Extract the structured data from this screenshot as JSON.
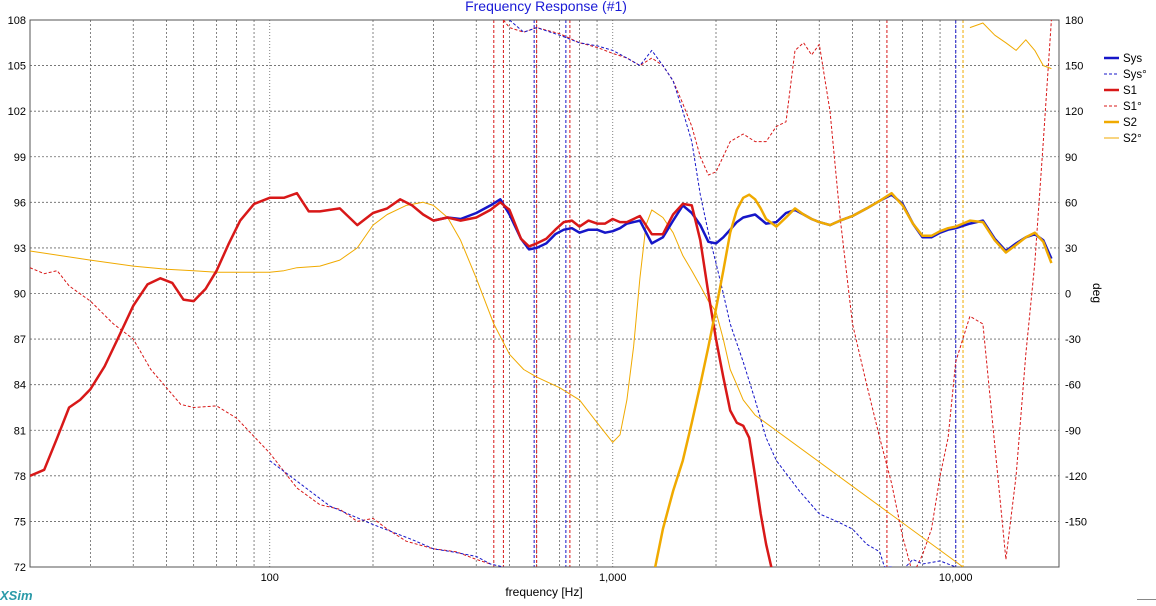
{
  "window": {
    "brand": "XSim"
  },
  "chart_data": {
    "type": "line",
    "title": "Frequency Response (#1)",
    "xlabel": "frequency [Hz]",
    "ylabel_right": "deg",
    "x_scale": "log",
    "xlim": [
      20,
      20000
    ],
    "ylim": [
      72,
      108
    ],
    "ylim_right": [
      -180,
      180
    ],
    "grid": true,
    "legend_position": "right",
    "y_ticks": [
      72,
      75,
      78,
      81,
      84,
      87,
      90,
      93,
      96,
      99,
      102,
      105,
      108
    ],
    "y_right_ticks": [
      -150,
      -120,
      -90,
      -60,
      -30,
      0,
      30,
      60,
      90,
      120,
      150,
      180
    ],
    "x_ticks": [
      {
        "value": 100,
        "label": "100"
      },
      {
        "value": 1000,
        "label": "1,000"
      },
      {
        "value": 10000,
        "label": "10,000"
      }
    ],
    "colors": {
      "sys": "#1616c8",
      "s1": "#d81818",
      "s2": "#f0aa00"
    },
    "series": [
      {
        "name": "Sys",
        "key": "sys",
        "style": "solid",
        "axis": "left",
        "width": 2.5,
        "x": [
          300,
          330,
          360,
          400,
          440,
          470,
          500,
          540,
          570,
          600,
          640,
          680,
          720,
          760,
          800,
          850,
          900,
          950,
          1000,
          1050,
          1100,
          1200,
          1300,
          1400,
          1500,
          1600,
          1700,
          1800,
          1900,
          2000,
          2100,
          2200,
          2300,
          2400,
          2600,
          2800,
          3000,
          3200,
          3400,
          3600,
          3800,
          4000,
          4300,
          4600,
          5000,
          5500,
          6000,
          6500,
          7000,
          7500,
          8000,
          8500,
          9000,
          9500,
          10000,
          11000,
          12000,
          13000,
          14000,
          15000,
          16000,
          17000,
          18000,
          19000
        ],
        "y": [
          94.8,
          95,
          94.9,
          95.3,
          95.8,
          96.2,
          95.2,
          93.6,
          92.9,
          93,
          93.3,
          93.9,
          94.2,
          94.3,
          94,
          94.2,
          94.2,
          94,
          94.1,
          94.3,
          94.6,
          94.8,
          93.3,
          93.7,
          94.8,
          95.8,
          95.3,
          94.5,
          93.4,
          93.3,
          93.7,
          94.2,
          94.7,
          95,
          95.2,
          94.6,
          94.7,
          95.3,
          95.5,
          95.2,
          94.9,
          94.7,
          94.5,
          94.8,
          95.1,
          95.6,
          96.1,
          96.5,
          95.9,
          94.6,
          93.7,
          93.7,
          94,
          94.2,
          94.3,
          94.6,
          94.8,
          93.6,
          92.8,
          93.3,
          93.7,
          93.9,
          93.5,
          92.3
        ]
      },
      {
        "name": "Sys°",
        "key": "sys",
        "style": "dash",
        "axis": "right",
        "width": 1,
        "x": [
          100,
          150,
          200,
          260,
          300,
          340,
          400,
          440,
          480,
          500,
          550,
          600,
          700,
          800,
          900,
          1000,
          1100,
          1200,
          1300,
          1400,
          1500,
          1600,
          1700,
          1800,
          1900,
          2000,
          2100,
          2200,
          2400,
          2600,
          2800,
          3000,
          3500,
          4000,
          4500,
          5000,
          5500,
          6000,
          6200,
          6500,
          7000,
          7500,
          8000,
          9000,
          10000,
          10200
        ],
        "y": [
          -110,
          -140,
          -152,
          -162,
          -168,
          -170,
          -173,
          -178,
          -180,
          180,
          172,
          175,
          170,
          165,
          163,
          160,
          155,
          150,
          160,
          150,
          140,
          120,
          100,
          65,
          40,
          20,
          0,
          -20,
          -45,
          -70,
          -95,
          -110,
          -130,
          -145,
          -150,
          -155,
          -165,
          -170,
          -180,
          -180,
          -182,
          -175,
          -178,
          -176,
          -180,
          180
        ]
      },
      {
        "name": "S1",
        "key": "s1",
        "style": "solid",
        "axis": "left",
        "width": 2.5,
        "x": [
          20,
          22,
          24,
          26,
          28,
          30,
          33,
          36,
          40,
          44,
          48,
          52,
          56,
          60,
          65,
          70,
          76,
          82,
          90,
          100,
          110,
          120,
          130,
          140,
          160,
          180,
          200,
          220,
          240,
          260,
          280,
          300,
          330,
          360,
          400,
          440,
          470,
          500,
          540,
          570,
          600,
          640,
          680,
          720,
          760,
          800,
          850,
          900,
          950,
          1000,
          1050,
          1100,
          1200,
          1300,
          1400,
          1500,
          1600,
          1700,
          1800,
          1900,
          2000,
          2100,
          2200,
          2300,
          2400,
          2500,
          2600,
          2700,
          2800,
          2900,
          3000
        ],
        "y": [
          78,
          78.4,
          80.5,
          82.5,
          83,
          83.7,
          85.2,
          87,
          89.2,
          90.6,
          91,
          90.7,
          89.6,
          89.5,
          90.3,
          91.5,
          93.3,
          94.8,
          95.9,
          96.3,
          96.3,
          96.6,
          95.4,
          95.4,
          95.6,
          94.5,
          95.3,
          95.6,
          96.2,
          95.8,
          95.2,
          94.8,
          95,
          94.8,
          95,
          95.5,
          96,
          95.5,
          93.6,
          93.1,
          93.3,
          93.6,
          94.2,
          94.7,
          94.8,
          94.4,
          94.8,
          94.6,
          94.6,
          94.9,
          94.7,
          94.7,
          95.1,
          93.9,
          93.9,
          95.2,
          95.9,
          95.8,
          93.5,
          90,
          87,
          84.5,
          82.3,
          81.5,
          81.3,
          80.5,
          78,
          75.5,
          73.5,
          72,
          71
        ]
      },
      {
        "name": "S1°",
        "key": "s1",
        "style": "dash",
        "axis": "right",
        "width": 1,
        "x": [
          20,
          22,
          24,
          26,
          30,
          35,
          40,
          45,
          50,
          55,
          60,
          70,
          80,
          100,
          120,
          140,
          160,
          180,
          200,
          220,
          250,
          300,
          350,
          400,
          440,
          480,
          500,
          550,
          600,
          700,
          800,
          900,
          1000,
          1100,
          1200,
          1300,
          1400,
          1500,
          1600,
          1700,
          1800,
          1900,
          2000,
          2200,
          2400,
          2600,
          2800,
          3000,
          3200,
          3400,
          3600,
          3800,
          4000,
          4300,
          4600,
          5000,
          5500,
          6000,
          6500,
          7000,
          7500,
          8000,
          8500,
          9000,
          9500,
          10000,
          11000,
          12000,
          13000,
          14000,
          15000,
          16000,
          17000,
          18000,
          19000
        ],
        "y": [
          17,
          13,
          15,
          5,
          -5,
          -20,
          -30,
          -50,
          -62,
          -73,
          -75,
          -74,
          -82,
          -105,
          -128,
          -139,
          -142,
          -150,
          -148,
          -155,
          -163,
          -168,
          -170,
          -175,
          -178,
          180,
          175,
          172,
          175,
          171,
          165,
          162,
          158,
          155,
          150,
          155,
          150,
          140,
          125,
          110,
          90,
          78,
          80,
          100,
          105,
          100,
          100,
          110,
          113,
          160,
          165,
          157,
          164,
          120,
          50,
          -20,
          -60,
          -95,
          -125,
          -160,
          -185,
          -172,
          -155,
          -120,
          -95,
          -45,
          -15,
          -20,
          -100,
          -175,
          -120,
          -40,
          20,
          100,
          180
        ]
      },
      {
        "name": "S2",
        "key": "s2",
        "style": "solid",
        "axis": "left",
        "width": 2.5,
        "x": [
          1330,
          1400,
          1500,
          1600,
          1700,
          1800,
          1900,
          2000,
          2100,
          2200,
          2300,
          2400,
          2500,
          2600,
          2700,
          2800,
          3000,
          3200,
          3400,
          3600,
          3800,
          4000,
          4300,
          4600,
          5000,
          5500,
          6000,
          6500,
          7000,
          7500,
          8000,
          8500,
          9000,
          9500,
          10000,
          11000,
          12000,
          13000,
          14000,
          15000,
          16000,
          17000,
          18000,
          19000
        ],
        "y": [
          72,
          74.5,
          77,
          79,
          81.5,
          84,
          86.5,
          89,
          91.5,
          94,
          95.5,
          96.3,
          96.5,
          96.2,
          95.6,
          94.9,
          94.4,
          95,
          95.6,
          95.2,
          94.9,
          94.7,
          94.5,
          94.8,
          95.1,
          95.6,
          96.1,
          96.6,
          95.8,
          94.6,
          93.8,
          93.8,
          94.1,
          94.3,
          94.4,
          94.8,
          94.7,
          93.5,
          92.7,
          93.2,
          93.7,
          94,
          93.4,
          92
        ]
      },
      {
        "name": "S2°",
        "key": "s2",
        "style": "solid-thin",
        "axis": "right",
        "width": 1,
        "x": [
          20,
          30,
          40,
          50,
          60,
          70,
          80,
          90,
          100,
          110,
          120,
          140,
          160,
          180,
          200,
          220,
          250,
          280,
          300,
          330,
          360,
          400,
          450,
          500,
          550,
          600,
          700,
          800,
          900,
          1000,
          1050,
          1100,
          1150,
          1200,
          1250,
          1300,
          1400,
          1500,
          1600,
          1700,
          1800,
          1900,
          2000,
          2100,
          2200,
          2300,
          2400,
          2600,
          10500,
          11000,
          12000,
          13000,
          14000,
          15000,
          16000,
          17000,
          18000,
          19000
        ],
        "y": [
          28,
          22,
          18,
          16,
          15,
          14,
          14,
          14,
          14,
          15,
          17,
          18,
          22,
          30,
          45,
          52,
          58,
          60,
          58,
          50,
          35,
          10,
          -20,
          -40,
          -50,
          -55,
          -62,
          -70,
          -85,
          -98,
          -93,
          -70,
          -35,
          10,
          45,
          55,
          50,
          40,
          25,
          15,
          5,
          -5,
          -12,
          -30,
          -50,
          -60,
          -70,
          -80,
          -180,
          175,
          178,
          170,
          165,
          160,
          167,
          160,
          150,
          148
        ]
      }
    ]
  }
}
